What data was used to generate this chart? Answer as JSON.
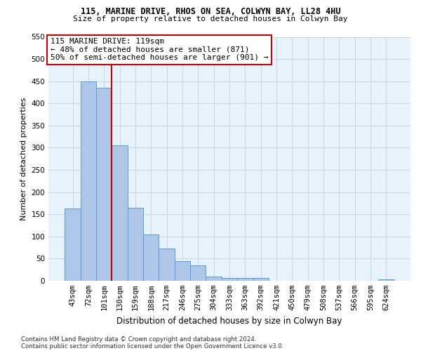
{
  "title": "115, MARINE DRIVE, RHOS ON SEA, COLWYN BAY, LL28 4HU",
  "subtitle": "Size of property relative to detached houses in Colwyn Bay",
  "xlabel": "Distribution of detached houses by size in Colwyn Bay",
  "ylabel": "Number of detached properties",
  "footnote1": "Contains HM Land Registry data © Crown copyright and database right 2024.",
  "footnote2": "Contains public sector information licensed under the Open Government Licence v3.0.",
  "bar_labels": [
    "43sqm",
    "72sqm",
    "101sqm",
    "130sqm",
    "159sqm",
    "188sqm",
    "217sqm",
    "246sqm",
    "275sqm",
    "304sqm",
    "333sqm",
    "363sqm",
    "392sqm",
    "421sqm",
    "450sqm",
    "479sqm",
    "508sqm",
    "537sqm",
    "566sqm",
    "595sqm",
    "624sqm"
  ],
  "bar_values": [
    163,
    450,
    435,
    305,
    165,
    105,
    73,
    44,
    35,
    9,
    6,
    6,
    7,
    0,
    0,
    0,
    0,
    0,
    0,
    0,
    3
  ],
  "bar_color": "#aec6e8",
  "bar_edge_color": "#5b9bd5",
  "grid_color": "#c8d9e8",
  "background_color": "#e8f2fb",
  "vline_color": "#cc0000",
  "vline_x_index": 2,
  "annotation_text_line1": "115 MARINE DRIVE: 119sqm",
  "annotation_text_line2": "← 48% of detached houses are smaller (871)",
  "annotation_text_line3": "50% of semi-detached houses are larger (901) →",
  "annotation_box_color": "#ffffff",
  "annotation_box_edge": "#cc0000",
  "ylim": [
    0,
    550
  ],
  "yticks": [
    0,
    50,
    100,
    150,
    200,
    250,
    300,
    350,
    400,
    450,
    500,
    550
  ],
  "title_fontsize": 8.5,
  "subtitle_fontsize": 8,
  "ylabel_fontsize": 8,
  "xlabel_fontsize": 8.5,
  "tick_fontsize": 7.5,
  "annot_fontsize": 8
}
